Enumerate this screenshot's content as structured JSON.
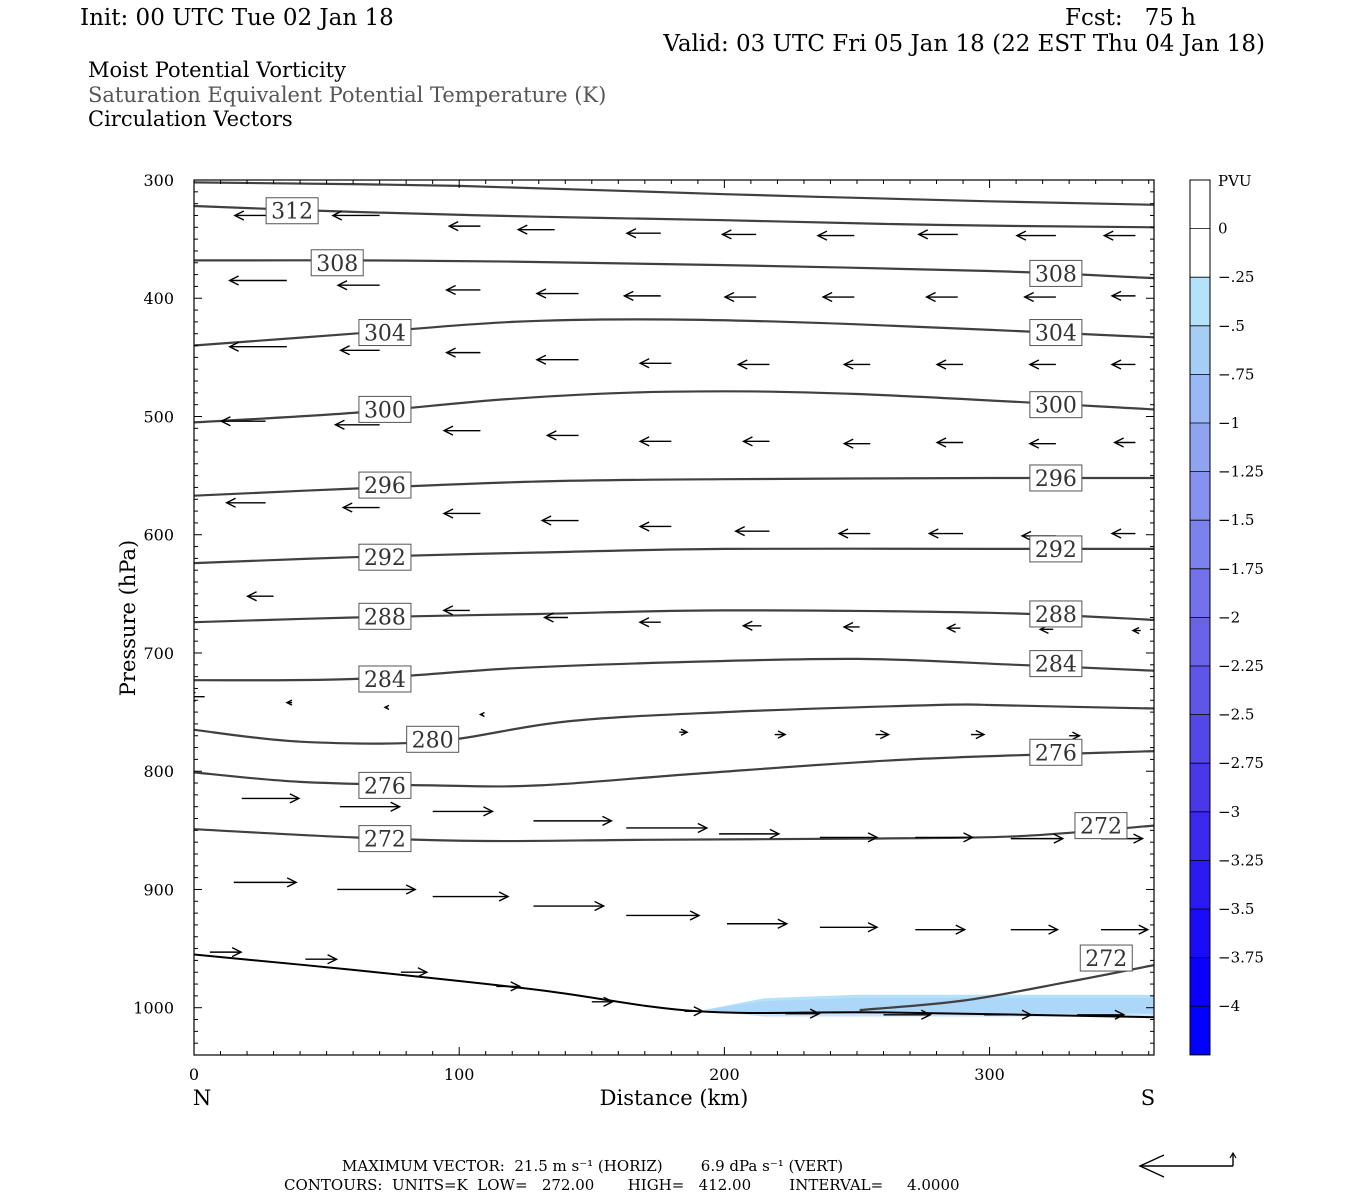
{
  "header": {
    "init": "Init: 00 UTC Tue 02 Jan 18",
    "fcst": "Fcst:   75 h",
    "valid": "Valid: 03 UTC Fri 05 Jan 18 (22 EST Thu 04 Jan 18)"
  },
  "legend_titles": {
    "field": "Moist Potential Vorticity",
    "contours": "Saturation Equivalent Potential Temperature (K)",
    "vectors": "Circulation Vectors"
  },
  "footer": {
    "max_vector": "MAXIMUM VECTOR:  21.5 m s⁻¹ (HORIZ)        6.9 dPa s⁻¹ (VERT)",
    "contours": "CONTOURS:  UNITS=K  LOW=   272.00       HIGH=   412.00        INTERVAL=     4.0000"
  },
  "colors": {
    "contour": "#404040",
    "vector": "#000000",
    "colorbar": [
      "#ffffff",
      "#ffffff",
      "#b4e2fa",
      "#a5cdf6",
      "#9ab9f4",
      "#8fa4f1",
      "#8592ef",
      "#7c82ed",
      "#7372eb",
      "#6a63e9",
      "#5f55e8",
      "#5447e8",
      "#4838ea",
      "#3b29ee",
      "#2c1af2",
      "#1b0cf7",
      "#0a00fd",
      "#0000ff"
    ]
  },
  "chart_data": {
    "type": "cross-section",
    "xlabel": "Distance (km)",
    "ylabel": "Pressure (hPa)",
    "xlim": [
      0,
      362
    ],
    "ylim": [
      1040,
      300
    ],
    "x_ticks": [
      0,
      100,
      200,
      300
    ],
    "y_ticks": [
      300,
      400,
      500,
      600,
      700,
      800,
      900,
      1000
    ],
    "x_end_labels": {
      "left": "N",
      "right": "S"
    },
    "colorbar": {
      "units": "PVU",
      "levels": [
        0,
        -0.25,
        -0.5,
        -0.75,
        -1,
        -1.25,
        -1.5,
        -1.75,
        -2,
        -2.25,
        -2.5,
        -2.75,
        -3,
        -3.25,
        -3.5,
        -3.75,
        -4
      ],
      "labels": [
        "0",
        "-.25",
        "-.5",
        "-.75",
        "-1",
        "-1.25",
        "-1.5",
        "-1.75",
        "-2",
        "-2.25",
        "-2.5",
        "-2.75",
        "-3",
        "-3.25",
        "-3.5",
        "-3.75",
        "-4"
      ]
    },
    "pv_region": {
      "value": -0.25,
      "points": [
        [
          192,
          1002
        ],
        [
          215,
          992
        ],
        [
          250,
          989
        ],
        [
          362,
          989
        ],
        [
          362,
          1005
        ],
        [
          215,
          1005
        ]
      ]
    },
    "contours": [
      {
        "label": "312",
        "points": [
          [
            0,
            322
          ],
          [
            60,
            327
          ],
          [
            130,
            331
          ],
          [
            200,
            334
          ],
          [
            280,
            338
          ],
          [
            362,
            340
          ]
        ],
        "label_positions": [
          [
            37,
            326
          ]
        ]
      },
      {
        "label": "",
        "points": [
          [
            0,
            302
          ],
          [
            100,
            305
          ],
          [
            200,
            312
          ],
          [
            300,
            318
          ],
          [
            362,
            321
          ]
        ],
        "label_positions": []
      },
      {
        "label": "308",
        "points": [
          [
            0,
            368
          ],
          [
            60,
            368
          ],
          [
            120,
            369
          ],
          [
            200,
            372
          ],
          [
            300,
            377
          ],
          [
            362,
            383
          ]
        ],
        "label_positions": [
          [
            54,
            370
          ],
          [
            325,
            379
          ]
        ]
      },
      {
        "label": "304",
        "points": [
          [
            0,
            440
          ],
          [
            60,
            430
          ],
          [
            120,
            420
          ],
          [
            180,
            418
          ],
          [
            250,
            422
          ],
          [
            362,
            433
          ]
        ],
        "label_positions": [
          [
            72,
            429
          ],
          [
            325,
            429
          ]
        ]
      },
      {
        "label": "300",
        "points": [
          [
            0,
            505
          ],
          [
            60,
            497
          ],
          [
            120,
            485
          ],
          [
            180,
            479
          ],
          [
            250,
            481
          ],
          [
            362,
            494
          ]
        ],
        "label_positions": [
          [
            72,
            494
          ],
          [
            325,
            490
          ]
        ]
      },
      {
        "label": "296",
        "points": [
          [
            0,
            567
          ],
          [
            60,
            561
          ],
          [
            130,
            555
          ],
          [
            200,
            553
          ],
          [
            300,
            552
          ],
          [
            362,
            552
          ]
        ],
        "label_positions": [
          [
            72,
            558
          ],
          [
            325,
            552
          ]
        ]
      },
      {
        "label": "292",
        "points": [
          [
            0,
            624
          ],
          [
            60,
            619
          ],
          [
            130,
            615
          ],
          [
            200,
            612
          ],
          [
            300,
            612
          ],
          [
            362,
            612
          ]
        ],
        "label_positions": [
          [
            72,
            619
          ],
          [
            325,
            612
          ]
        ]
      },
      {
        "label": "288",
        "points": [
          [
            0,
            674
          ],
          [
            60,
            670
          ],
          [
            130,
            667
          ],
          [
            200,
            664
          ],
          [
            300,
            666
          ],
          [
            362,
            672
          ]
        ],
        "label_positions": [
          [
            72,
            669
          ],
          [
            325,
            667
          ]
        ]
      },
      {
        "label": "284",
        "points": [
          [
            0,
            723
          ],
          [
            60,
            722
          ],
          [
            120,
            713
          ],
          [
            180,
            708
          ],
          [
            250,
            705
          ],
          [
            310,
            710
          ],
          [
            362,
            715
          ]
        ],
        "label_positions": [
          [
            72,
            722
          ],
          [
            325,
            709
          ]
        ]
      },
      {
        "label": "",
        "points": [
          [
            300,
            744
          ],
          [
            362,
            747
          ]
        ],
        "label_positions": []
      },
      {
        "label": "280",
        "points": [
          [
            0,
            765
          ],
          [
            40,
            775
          ],
          [
            90,
            775
          ],
          [
            140,
            758
          ],
          [
            200,
            750
          ],
          [
            280,
            744
          ],
          [
            300,
            744
          ]
        ],
        "label_positions": [
          [
            90,
            773
          ]
        ]
      },
      {
        "label": "276",
        "points": [
          [
            0,
            801
          ],
          [
            40,
            809
          ],
          [
            90,
            812
          ],
          [
            130,
            812
          ],
          [
            190,
            802
          ],
          [
            270,
            790
          ],
          [
            362,
            783
          ]
        ],
        "label_positions": [
          [
            72,
            812
          ],
          [
            325,
            784
          ]
        ]
      },
      {
        "label": "272",
        "points": [
          [
            0,
            849
          ],
          [
            60,
            856
          ],
          [
            110,
            859
          ],
          [
            170,
            858
          ],
          [
            250,
            857
          ],
          [
            310,
            855
          ],
          [
            362,
            846
          ]
        ],
        "label_positions": [
          [
            72,
            857
          ],
          [
            342,
            846
          ]
        ]
      },
      {
        "label": "272",
        "points": [
          [
            251,
            1002
          ],
          [
            290,
            994
          ],
          [
            330,
            978
          ],
          [
            362,
            964
          ]
        ],
        "label_positions": [
          [
            344,
            958
          ]
        ]
      }
    ],
    "ground_line": [
      [
        0,
        955
      ],
      [
        60,
        968
      ],
      [
        130,
        985
      ],
      [
        190,
        1003
      ],
      [
        260,
        1004
      ],
      [
        362,
        1008
      ]
    ],
    "vectors": [
      {
        "x": 35,
        "p": 330,
        "u": -20,
        "w": 0
      },
      {
        "x": 70,
        "p": 330,
        "u": -18,
        "w": 0
      },
      {
        "x": 108,
        "p": 339,
        "u": -12,
        "w": 0
      },
      {
        "x": 136,
        "p": 342,
        "u": -14,
        "w": 0
      },
      {
        "x": 176,
        "p": 345,
        "u": -13,
        "w": 0
      },
      {
        "x": 212,
        "p": 346,
        "u": -13,
        "w": 0
      },
      {
        "x": 249,
        "p": 347,
        "u": -14,
        "w": 0
      },
      {
        "x": 288,
        "p": 346,
        "u": -15,
        "w": 0
      },
      {
        "x": 325,
        "p": 347,
        "u": -15,
        "w": 0
      },
      {
        "x": 355,
        "p": 347,
        "u": -12,
        "w": 0
      },
      {
        "x": 35,
        "p": 385,
        "u": -22,
        "w": 0
      },
      {
        "x": 70,
        "p": 389,
        "u": -16,
        "w": 0
      },
      {
        "x": 108,
        "p": 393,
        "u": -13,
        "w": 0
      },
      {
        "x": 145,
        "p": 396,
        "u": -16,
        "w": 0
      },
      {
        "x": 176,
        "p": 398,
        "u": -14,
        "w": 0
      },
      {
        "x": 212,
        "p": 399,
        "u": -12,
        "w": 0
      },
      {
        "x": 249,
        "p": 399,
        "u": -12,
        "w": 0
      },
      {
        "x": 288,
        "p": 399,
        "u": -12,
        "w": 0
      },
      {
        "x": 325,
        "p": 399,
        "u": -12,
        "w": 0
      },
      {
        "x": 355,
        "p": 398,
        "u": -9,
        "w": 0
      },
      {
        "x": 35,
        "p": 441,
        "u": -22,
        "w": 0
      },
      {
        "x": 70,
        "p": 444,
        "u": -15,
        "w": 0
      },
      {
        "x": 108,
        "p": 446,
        "u": -13,
        "w": 0
      },
      {
        "x": 145,
        "p": 452,
        "u": -16,
        "w": 0
      },
      {
        "x": 180,
        "p": 455,
        "u": -12,
        "w": 0
      },
      {
        "x": 217,
        "p": 456,
        "u": -12,
        "w": 0
      },
      {
        "x": 255,
        "p": 456,
        "u": -10,
        "w": 0
      },
      {
        "x": 290,
        "p": 456,
        "u": -10,
        "w": 0
      },
      {
        "x": 325,
        "p": 456,
        "u": -10,
        "w": 0
      },
      {
        "x": 355,
        "p": 456,
        "u": -9,
        "w": 0
      },
      {
        "x": 27,
        "p": 504,
        "u": -17,
        "w": 0
      },
      {
        "x": 70,
        "p": 507,
        "u": -17,
        "w": 0
      },
      {
        "x": 108,
        "p": 512,
        "u": -14,
        "w": 0
      },
      {
        "x": 145,
        "p": 516,
        "u": -12,
        "w": 0
      },
      {
        "x": 180,
        "p": 521,
        "u": -12,
        "w": 0
      },
      {
        "x": 217,
        "p": 521,
        "u": -10,
        "w": 0
      },
      {
        "x": 255,
        "p": 523,
        "u": -10,
        "w": 0
      },
      {
        "x": 290,
        "p": 522,
        "u": -10,
        "w": 0
      },
      {
        "x": 325,
        "p": 523,
        "u": -10,
        "w": 0
      },
      {
        "x": 355,
        "p": 522,
        "u": -8,
        "w": 0
      },
      {
        "x": 27,
        "p": 573,
        "u": -15,
        "w": 0
      },
      {
        "x": 70,
        "p": 577,
        "u": -14,
        "w": 0
      },
      {
        "x": 108,
        "p": 582,
        "u": -14,
        "w": 0
      },
      {
        "x": 145,
        "p": 588,
        "u": -14,
        "w": 0
      },
      {
        "x": 180,
        "p": 593,
        "u": -12,
        "w": 0
      },
      {
        "x": 217,
        "p": 597,
        "u": -13,
        "w": 0
      },
      {
        "x": 255,
        "p": 599,
        "u": -12,
        "w": 0
      },
      {
        "x": 290,
        "p": 599,
        "u": -13,
        "w": 0
      },
      {
        "x": 325,
        "p": 601,
        "u": -13,
        "w": 0
      },
      {
        "x": 355,
        "p": 599,
        "u": -9,
        "w": 0
      },
      {
        "x": 30,
        "p": 652,
        "u": -10,
        "w": 0
      },
      {
        "x": 104,
        "p": 664,
        "u": -10,
        "w": 0
      },
      {
        "x": 141,
        "p": 670,
        "u": -9,
        "w": 0
      },
      {
        "x": 176,
        "p": 674,
        "u": -8,
        "w": 0
      },
      {
        "x": 214,
        "p": 677,
        "u": -7,
        "w": 0
      },
      {
        "x": 251,
        "p": 678,
        "u": -6,
        "w": 0
      },
      {
        "x": 289,
        "p": 679,
        "u": -5,
        "w": 0
      },
      {
        "x": 324,
        "p": 680,
        "u": -5,
        "w": 0
      },
      {
        "x": 357,
        "p": 681,
        "u": -3,
        "w": 0
      },
      {
        "x": 4,
        "p": 737,
        "u": -7,
        "w": 0
      },
      {
        "x": 37,
        "p": 742,
        "u": -2,
        "w": 0
      },
      {
        "x": 73,
        "p": 746,
        "u": -1,
        "w": 0
      },
      {
        "x": 109,
        "p": 752,
        "u": -1,
        "w": 0
      },
      {
        "x": 183,
        "p": 767,
        "u": 3,
        "w": 0
      },
      {
        "x": 219,
        "p": 769,
        "u": 4,
        "w": 0
      },
      {
        "x": 257,
        "p": 769,
        "u": 5,
        "w": 0
      },
      {
        "x": 293,
        "p": 769,
        "u": 5,
        "w": 0
      },
      {
        "x": 330,
        "p": 770,
        "u": 4,
        "w": 0
      },
      {
        "x": 18,
        "p": 823,
        "u": 22,
        "w": 0
      },
      {
        "x": 55,
        "p": 830,
        "u": 23,
        "w": 0
      },
      {
        "x": 90,
        "p": 834,
        "u": 23,
        "w": 0
      },
      {
        "x": 128,
        "p": 842,
        "u": 30,
        "w": 0
      },
      {
        "x": 163,
        "p": 848,
        "u": 31,
        "w": 0
      },
      {
        "x": 198,
        "p": 853,
        "u": 23,
        "w": 0
      },
      {
        "x": 236,
        "p": 856,
        "u": 22,
        "w": 0
      },
      {
        "x": 272,
        "p": 856,
        "u": 22,
        "w": 0
      },
      {
        "x": 308,
        "p": 857,
        "u": 20,
        "w": 0
      },
      {
        "x": 342,
        "p": 857,
        "u": 16,
        "w": 0
      },
      {
        "x": 15,
        "p": 894,
        "u": 24,
        "w": 0
      },
      {
        "x": 54,
        "p": 900,
        "u": 30,
        "w": 0
      },
      {
        "x": 90,
        "p": 906,
        "u": 29,
        "w": 0
      },
      {
        "x": 128,
        "p": 914,
        "u": 27,
        "w": 0
      },
      {
        "x": 163,
        "p": 922,
        "u": 28,
        "w": 0
      },
      {
        "x": 201,
        "p": 929,
        "u": 23,
        "w": 0
      },
      {
        "x": 236,
        "p": 932,
        "u": 22,
        "w": 0
      },
      {
        "x": 272,
        "p": 934,
        "u": 19,
        "w": 0
      },
      {
        "x": 308,
        "p": 934,
        "u": 18,
        "w": 0
      },
      {
        "x": 342,
        "p": 934,
        "u": 18,
        "w": 0
      },
      {
        "x": 6,
        "p": 953,
        "u": 12,
        "w": 0
      },
      {
        "x": 42,
        "p": 959,
        "u": 12,
        "w": 0
      },
      {
        "x": 78,
        "p": 970,
        "u": 10,
        "w": 0
      },
      {
        "x": 114,
        "p": 982,
        "u": 9,
        "w": 0
      },
      {
        "x": 150,
        "p": 995,
        "u": 8,
        "w": 0
      },
      {
        "x": 185,
        "p": 1003,
        "u": 7,
        "w": 0
      },
      {
        "x": 223,
        "p": 1005,
        "u": 13,
        "w": 0
      },
      {
        "x": 260,
        "p": 1006,
        "u": 18,
        "w": 0
      },
      {
        "x": 298,
        "p": 1006,
        "u": 18,
        "w": 0
      },
      {
        "x": 333,
        "p": 1006,
        "u": 18,
        "w": 0
      }
    ]
  }
}
